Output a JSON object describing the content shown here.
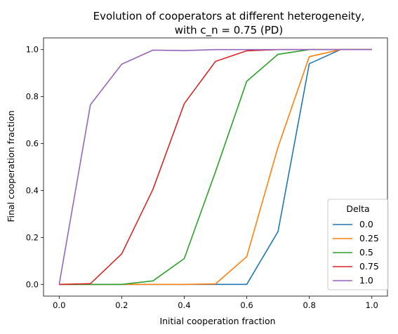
{
  "chart_data": {
    "type": "line",
    "title": "Evolution of cooperators at different heterogeneity,",
    "subtitle": "with c_n = 0.75 (PD)",
    "xlabel": "Initial cooperation fraction",
    "ylabel": "Final cooperation fraction",
    "xlim": [
      -0.05,
      1.05
    ],
    "ylim": [
      -0.05,
      1.05
    ],
    "x_ticks": [
      0.0,
      0.2,
      0.4,
      0.6,
      0.8,
      1.0
    ],
    "x_tick_labels": [
      "0.0",
      "0.2",
      "0.4",
      "0.6",
      "0.8",
      "1.0"
    ],
    "y_ticks": [
      0.0,
      0.2,
      0.4,
      0.6,
      0.8,
      1.0
    ],
    "y_tick_labels": [
      "0.0",
      "0.2",
      "0.4",
      "0.6",
      "0.8",
      "1.0"
    ],
    "grid": false,
    "legend": {
      "title": "Delta",
      "placement": "lower-right"
    },
    "x": [
      0.0,
      0.1,
      0.2,
      0.3,
      0.4,
      0.5,
      0.6,
      0.7,
      0.8,
      0.9,
      1.0
    ],
    "series": [
      {
        "name": "0.0",
        "color": "#1f77b4",
        "values": [
          0.0,
          0.0,
          0.0,
          0.0,
          0.0,
          0.0,
          0.0,
          0.225,
          0.94,
          1.0,
          1.0
        ]
      },
      {
        "name": "0.25",
        "color": "#ff7f0e",
        "values": [
          0.0,
          0.0,
          0.0,
          0.0,
          0.0,
          0.002,
          0.118,
          0.585,
          0.97,
          1.0,
          1.0
        ]
      },
      {
        "name": "0.5",
        "color": "#2ca02c",
        "values": [
          0.0,
          0.0,
          0.0,
          0.015,
          0.11,
          0.48,
          0.865,
          0.98,
          1.0,
          1.0,
          1.0
        ]
      },
      {
        "name": "0.75",
        "color": "#d62728",
        "values": [
          0.0,
          0.003,
          0.13,
          0.405,
          0.77,
          0.95,
          0.995,
          1.0,
          1.0,
          1.0,
          1.0
        ]
      },
      {
        "name": "1.0",
        "color": "#9467bd",
        "values": [
          0.0,
          0.765,
          0.938,
          0.998,
          0.996,
          1.0,
          1.0,
          1.0,
          1.0,
          1.0,
          1.0
        ]
      }
    ]
  }
}
